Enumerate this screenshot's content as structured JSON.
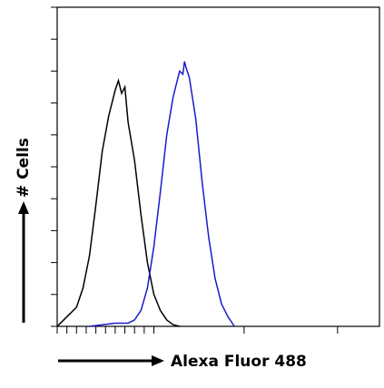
{
  "chart_data": {
    "type": "line",
    "x_label": "Alexa Fluor 488",
    "y_label": "# Cells",
    "xlim": [
      0,
      100
    ],
    "ylim": [
      0,
      100
    ],
    "xticks": [
      0,
      3,
      6,
      9,
      12,
      15,
      18,
      21,
      24,
      27,
      30,
      58,
      87
    ],
    "yticks": [
      0,
      10,
      20,
      30,
      40,
      50,
      60,
      70,
      80,
      90,
      100
    ],
    "series": [
      {
        "color": "#000000",
        "x": [
          0,
          2,
          4,
          6,
          8,
          10,
          12,
          14,
          16,
          17,
          18,
          19,
          20,
          21,
          22,
          24,
          26,
          28,
          30,
          32,
          34,
          36,
          38
        ],
        "values": [
          0,
          2,
          4,
          6,
          12,
          22,
          38,
          55,
          66,
          70,
          74,
          77,
          73,
          75,
          64,
          52,
          35,
          20,
          10,
          5,
          2,
          0.5,
          0
        ]
      },
      {
        "color": "#1a1acc",
        "x": [
          10,
          14,
          18,
          22,
          24,
          26,
          28,
          30,
          32,
          34,
          36,
          38,
          39,
          39.5,
          40,
          41,
          43,
          45,
          47,
          49,
          51,
          53,
          55
        ],
        "values": [
          0,
          0.5,
          1,
          1,
          2,
          5,
          12,
          25,
          42,
          60,
          72,
          80,
          79,
          83,
          81,
          78,
          65,
          45,
          28,
          15,
          7,
          3,
          0
        ]
      }
    ]
  }
}
